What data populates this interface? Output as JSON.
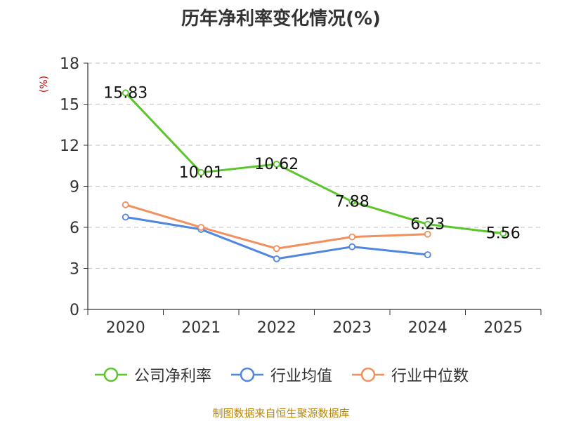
{
  "chart_data": {
    "type": "line",
    "title": "历年净利率变化情况(%)",
    "ylabel": "(%)",
    "xlabel": "",
    "ylim": [
      0,
      18
    ],
    "yticks": [
      0,
      3,
      6,
      9,
      12,
      15,
      18
    ],
    "grid": true,
    "legend_position": "bottom",
    "categories": [
      "2020",
      "2021",
      "2022",
      "2023",
      "2024",
      "2025"
    ],
    "series": [
      {
        "name": "公司净利率",
        "color": "#5cc52b",
        "values": [
          15.83,
          10.01,
          10.62,
          7.88,
          6.23,
          5.56
        ],
        "labels": [
          "15.83",
          "10.01",
          "10.62",
          "7.88",
          "6.23",
          "5.56"
        ]
      },
      {
        "name": "行业均值",
        "color": "#4f86e0",
        "values": [
          6.75,
          5.85,
          3.7,
          4.58,
          4.0,
          null
        ]
      },
      {
        "name": "行业中位数",
        "color": "#f28f5c",
        "values": [
          7.65,
          6.0,
          4.45,
          5.3,
          5.5,
          null
        ]
      }
    ]
  },
  "footer": {
    "source": "制图数据来自恒生聚源数据库"
  }
}
